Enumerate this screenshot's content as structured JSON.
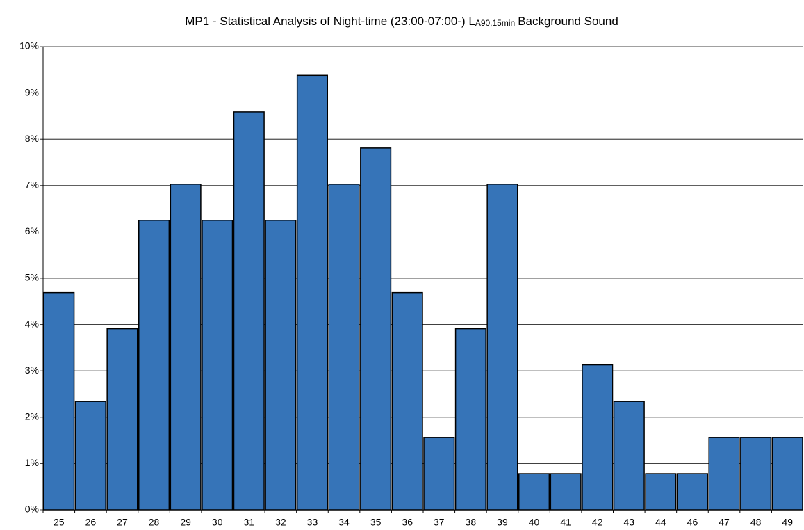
{
  "chart_data": {
    "type": "bar",
    "title": {
      "main": "MP1 - Statistical Analysis of Night-time (23:00-07:00-) L",
      "subscript": "A90,15min",
      "suffix": "Background Sound"
    },
    "categories": [
      "25",
      "26",
      "27",
      "28",
      "29",
      "30",
      "31",
      "32",
      "33",
      "34",
      "35",
      "36",
      "37",
      "38",
      "39",
      "40",
      "41",
      "42",
      "43",
      "44",
      "46",
      "47",
      "48",
      "49"
    ],
    "values": [
      4.69,
      2.34,
      3.91,
      6.25,
      7.03,
      6.25,
      8.59,
      6.25,
      9.38,
      7.03,
      7.81,
      4.69,
      1.56,
      3.91,
      7.03,
      0.78,
      0.78,
      3.13,
      2.34,
      0.78,
      0.78,
      1.56,
      1.56,
      1.56
    ],
    "color": "#3674b8",
    "ylim": [
      0,
      10
    ],
    "yticks": [
      {
        "value": 0,
        "label": "0%"
      },
      {
        "value": 1,
        "label": "1%"
      },
      {
        "value": 2,
        "label": "2%"
      },
      {
        "value": 3,
        "label": "3%"
      },
      {
        "value": 4,
        "label": "4%"
      },
      {
        "value": 5,
        "label": "5%"
      },
      {
        "value": 6,
        "label": "6%"
      },
      {
        "value": 7,
        "label": "7%"
      },
      {
        "value": 8,
        "label": "8%"
      },
      {
        "value": 9,
        "label": "9%"
      },
      {
        "value": 10,
        "label": "10%"
      }
    ],
    "grid": true
  }
}
